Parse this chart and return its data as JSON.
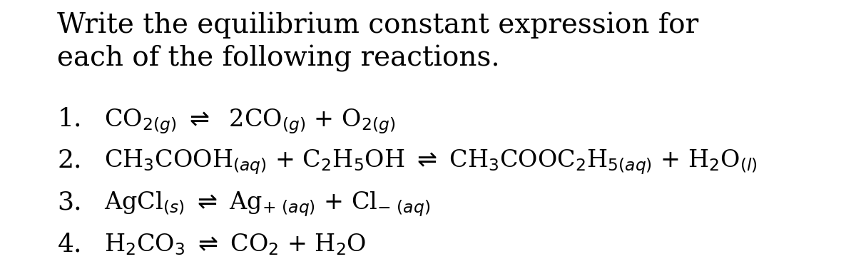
{
  "background_color": "#ffffff",
  "title_line1": "Write the equilibrium constant expression for",
  "title_line2": "each of the following reactions.",
  "title_fontsize": 28,
  "rxn_fontsize": 24,
  "num_fontsize": 26,
  "sub_fontsize": 16,
  "lines": [
    {
      "number": "1.",
      "formula": "CO$_{2(g)}$ $\\rightleftharpoons$  2CO$_{(g)}$ + O$_{2(g)}$"
    },
    {
      "number": "2.",
      "formula": "CH$_3$COOH$_{(aq)}$ + C$_2$H$_5$OH $\\rightleftharpoons$ CH$_3$COOC$_2$H$_{5(aq)}$ + H$_2$O$_{(l)}$"
    },
    {
      "number": "3.",
      "formula": "AgCl$_{(s)}$ $\\rightleftharpoons$ Ag$_{+\\ (aq)}$ + Cl$_{-\\ (aq)}$"
    },
    {
      "number": "4.",
      "formula": "H$_2$CO$_3$ $\\rightleftharpoons$ CO$_2$ + H$_2$O"
    }
  ]
}
